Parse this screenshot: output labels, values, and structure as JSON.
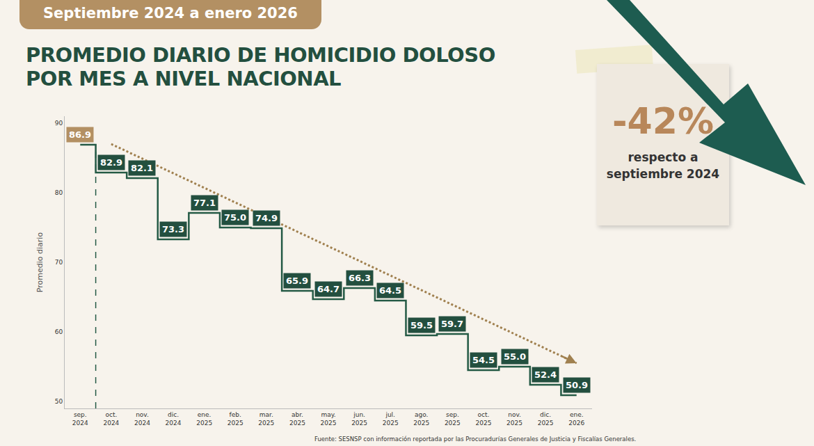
{
  "header": "Septiembre 2024 a enero 2026",
  "callout": {
    "text": "-42%",
    "lines": [
      "respecto a",
      "septiembre 2024"
    ]
  },
  "source": "Fuente: SESNSP con información reportada por las Procuradurías Generales de Justicia y Fiscalías Generales.",
  "chart_data": {
    "type": "line",
    "title": "PROMEDIO DIARIO DE HOMICIDIO DOLOSO\nPOR MES A NIVEL NACIONAL",
    "y_label": "Promedio diario",
    "categories": [
      "sep. 2024",
      "oct. 2024",
      "nov. 2024",
      "dic. 2024",
      "ene. 2025",
      "feb. 2025",
      "mar. 2025",
      "abr. 2025",
      "may. 2025",
      "jun. 2025",
      "jul. 2025",
      "ago. 2025",
      "sep. 2025",
      "oct. 2025",
      "nov. 2025",
      "dic. 2025",
      "ene. 2026"
    ],
    "values": [
      86.9,
      82.9,
      82.1,
      73.3,
      77.1,
      75.0,
      74.9,
      65.9,
      64.7,
      66.3,
      64.5,
      59.5,
      59.7,
      54.5,
      55.0,
      52.4,
      50.9
    ],
    "value_labels": [
      "86.9",
      "82.9",
      "82.1",
      "73.3",
      "77.1",
      "75.0",
      "74.9",
      "65.9",
      "64.7",
      "66.3",
      "64.5",
      "59.5",
      "59.7",
      "54.5",
      "55.0",
      "52.4",
      "50.9"
    ],
    "color": "#245a45",
    "colors": [
      "#b39063",
      "#234f3f",
      "#234f3f",
      "#234f3f",
      "#234f3f",
      "#234f3f",
      "#234f3f",
      "#234f3f",
      "#234f3f",
      "#234f3f",
      "#234f3f",
      "#234f3f",
      "#234f3f",
      "#234f3f",
      "#234f3f",
      "#234f3f",
      "#234f3f"
    ],
    "line_style": "step",
    "data_labels": true,
    "grid": false,
    "ylim": [
      49,
      91
    ],
    "yticks": [
      50,
      60,
      70,
      80,
      90
    ],
    "trend": {
      "values": [
        null,
        87.0,
        null,
        null,
        null,
        null,
        null,
        null,
        null,
        null,
        null,
        null,
        null,
        null,
        null,
        null,
        55.5
      ],
      "line_style": "dotted",
      "color": "#a0804f"
    }
  }
}
